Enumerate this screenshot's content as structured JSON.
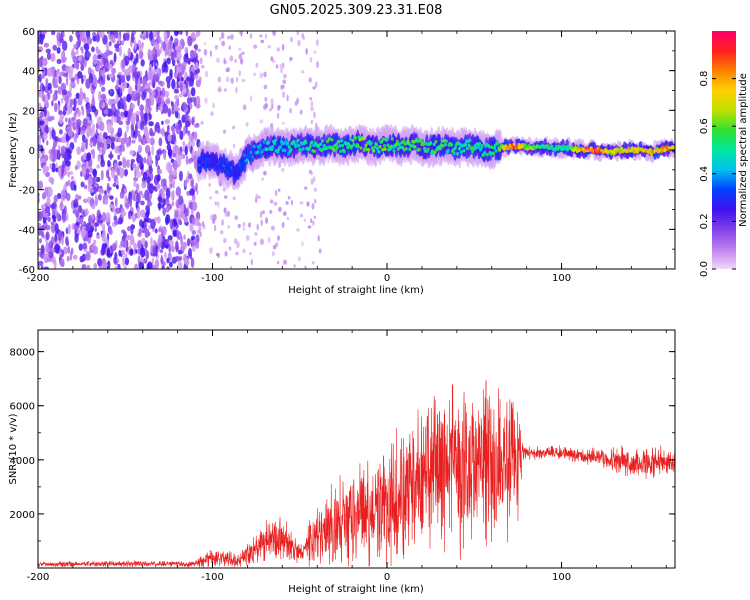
{
  "title": "GN05.2025.309.23.31.E08",
  "chart_data": [
    {
      "type": "heatmap",
      "xlabel": "Height of straight line (km)",
      "ylabel": "Frequency (Hz)",
      "xlim": [
        -200,
        165
      ],
      "ylim": [
        -60,
        60
      ],
      "xticks": [
        -200,
        -100,
        0,
        100
      ],
      "yticks": [
        60,
        40,
        20,
        0,
        -20,
        -40,
        -60
      ],
      "colorbar": {
        "label": "Normalized spectral amplitude",
        "range": [
          0,
          1
        ],
        "ticks": [
          0.0,
          0.2,
          0.4,
          0.6,
          0.8
        ],
        "colors": [
          "#f0d8f8",
          "#c080f0",
          "#8040e8",
          "#4010f0",
          "#0040ff",
          "#00c0f0",
          "#00e8a0",
          "#30e030",
          "#c0e000",
          "#ffd000",
          "#ff8000",
          "#ff2020",
          "#ff0066"
        ]
      },
      "noise_region_xmax": -108,
      "signal_track": [
        {
          "x": -108,
          "f": -6,
          "a": 0.35
        },
        {
          "x": -100,
          "f": -5,
          "a": 0.3
        },
        {
          "x": -92,
          "f": -9,
          "a": 0.38
        },
        {
          "x": -86,
          "f": -12,
          "a": 0.32
        },
        {
          "x": -80,
          "f": -3,
          "a": 0.42
        },
        {
          "x": -72,
          "f": 1,
          "a": 0.48
        },
        {
          "x": -64,
          "f": 2,
          "a": 0.55
        },
        {
          "x": -56,
          "f": 1,
          "a": 0.5
        },
        {
          "x": -48,
          "f": 3,
          "a": 0.55
        },
        {
          "x": -40,
          "f": 2,
          "a": 0.6
        },
        {
          "x": -32,
          "f": 3,
          "a": 0.62
        },
        {
          "x": -24,
          "f": 2,
          "a": 0.58
        },
        {
          "x": -16,
          "f": 4,
          "a": 0.66
        },
        {
          "x": -8,
          "f": 1,
          "a": 0.6
        },
        {
          "x": 0,
          "f": 3,
          "a": 0.62
        },
        {
          "x": 8,
          "f": 2,
          "a": 0.58
        },
        {
          "x": 16,
          "f": 3,
          "a": 0.62
        },
        {
          "x": 24,
          "f": 1,
          "a": 0.56
        },
        {
          "x": 32,
          "f": 2,
          "a": 0.6
        },
        {
          "x": 40,
          "f": 1,
          "a": 0.55
        },
        {
          "x": 48,
          "f": 2,
          "a": 0.58
        },
        {
          "x": 56,
          "f": 0,
          "a": 0.55
        },
        {
          "x": 64,
          "f": 1,
          "a": 0.6
        },
        {
          "x": 72,
          "f": 2,
          "a": 0.95
        },
        {
          "x": 80,
          "f": 1.5,
          "a": 0.7
        },
        {
          "x": 88,
          "f": 1.5,
          "a": 0.6
        },
        {
          "x": 96,
          "f": 1,
          "a": 0.55
        },
        {
          "x": 104,
          "f": 1,
          "a": 0.55
        },
        {
          "x": 112,
          "f": 0,
          "a": 0.9
        },
        {
          "x": 120,
          "f": 0,
          "a": 0.95
        },
        {
          "x": 128,
          "f": -1,
          "a": 0.75
        },
        {
          "x": 136,
          "f": 0,
          "a": 0.8
        },
        {
          "x": 144,
          "f": 0,
          "a": 0.85
        },
        {
          "x": 152,
          "f": -1,
          "a": 0.8
        },
        {
          "x": 160,
          "f": 1,
          "a": 0.85
        },
        {
          "x": 165,
          "f": 1,
          "a": 0.85
        }
      ]
    },
    {
      "type": "line",
      "xlabel": "Height of straight line (km)",
      "ylabel": "SNR (10 * v/v)",
      "xlim": [
        -200,
        165
      ],
      "ylim": [
        0,
        8800
      ],
      "xticks": [
        -200,
        -100,
        0,
        100
      ],
      "yticks": [
        2000,
        4000,
        6000,
        8000
      ],
      "color": "#e82020",
      "envelope": [
        {
          "x": -200,
          "base": 150,
          "amp": 120
        },
        {
          "x": -110,
          "base": 150,
          "amp": 140
        },
        {
          "x": -100,
          "base": 400,
          "amp": 500
        },
        {
          "x": -85,
          "base": 300,
          "amp": 300
        },
        {
          "x": -75,
          "base": 800,
          "amp": 700
        },
        {
          "x": -60,
          "base": 1100,
          "amp": 1100
        },
        {
          "x": -50,
          "base": 500,
          "amp": 400
        },
        {
          "x": -40,
          "base": 1200,
          "amp": 1400
        },
        {
          "x": -25,
          "base": 1700,
          "amp": 2000
        },
        {
          "x": -10,
          "base": 2000,
          "amp": 2400
        },
        {
          "x": 0,
          "base": 2300,
          "amp": 2600
        },
        {
          "x": 15,
          "base": 2900,
          "amp": 3200
        },
        {
          "x": 30,
          "base": 3600,
          "amp": 3400
        },
        {
          "x": 45,
          "base": 3800,
          "amp": 3700
        },
        {
          "x": 55,
          "base": 4000,
          "amp": 3900
        },
        {
          "x": 65,
          "base": 3900,
          "amp": 3200
        },
        {
          "x": 75,
          "base": 3900,
          "amp": 2800
        },
        {
          "x": 78,
          "base": 4250,
          "amp": 300
        },
        {
          "x": 100,
          "base": 4250,
          "amp": 300
        },
        {
          "x": 120,
          "base": 4100,
          "amp": 400
        },
        {
          "x": 140,
          "base": 3900,
          "amp": 700
        },
        {
          "x": 165,
          "base": 3900,
          "amp": 650
        }
      ]
    }
  ]
}
